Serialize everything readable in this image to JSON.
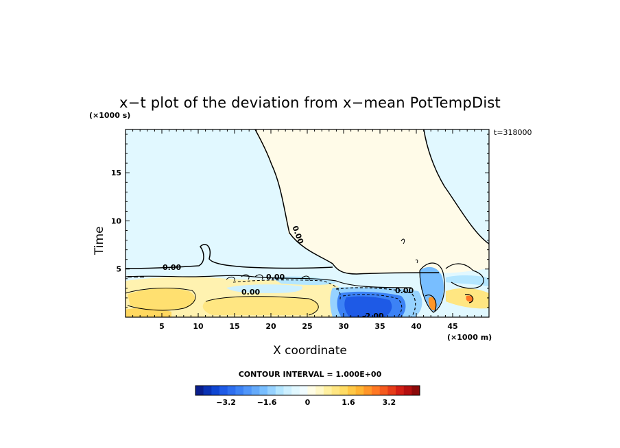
{
  "chart_data": {
    "type": "heatmap",
    "title": "x−t plot of the deviation from x−mean PotTempDist",
    "xlabel": "X coordinate",
    "ylabel": "Time",
    "x_unit": "(×1000 m)",
    "y_unit": "(×1000 s)",
    "time_stamp": "t=318000",
    "xlim": [
      0,
      50
    ],
    "ylim": [
      0,
      19.5
    ],
    "x_ticks": [
      "5",
      "10",
      "15",
      "20",
      "25",
      "30",
      "35",
      "40",
      "45"
    ],
    "y_ticks": [
      "5",
      "10",
      "15"
    ],
    "contour_interval": "CONTOUR INTERVAL = 1.000E+00",
    "contour_labels": [
      "0.00",
      "0.00",
      "0.00",
      "0.00",
      "0.00",
      "-2.00"
    ],
    "colorbar": {
      "ticks": [
        "−3.2",
        "−1.6",
        "0",
        "1.6",
        "3.2"
      ],
      "colors": [
        "#0a1e8c",
        "#0a32b4",
        "#0f46d2",
        "#1e5ae6",
        "#2d6eef",
        "#3c82f5",
        "#5096fa",
        "#64aafa",
        "#78beff",
        "#96d2ff",
        "#b4e6ff",
        "#cdf0ff",
        "#e1f8ff",
        "#f0fcff",
        "#fffde6",
        "#fff8c8",
        "#fff0a0",
        "#ffe682",
        "#ffdc64",
        "#ffc846",
        "#ffb432",
        "#ff9628",
        "#ff7823",
        "#f55a1e",
        "#e63c19",
        "#d21e14",
        "#b40f0f",
        "#8c0a0a"
      ]
    }
  }
}
